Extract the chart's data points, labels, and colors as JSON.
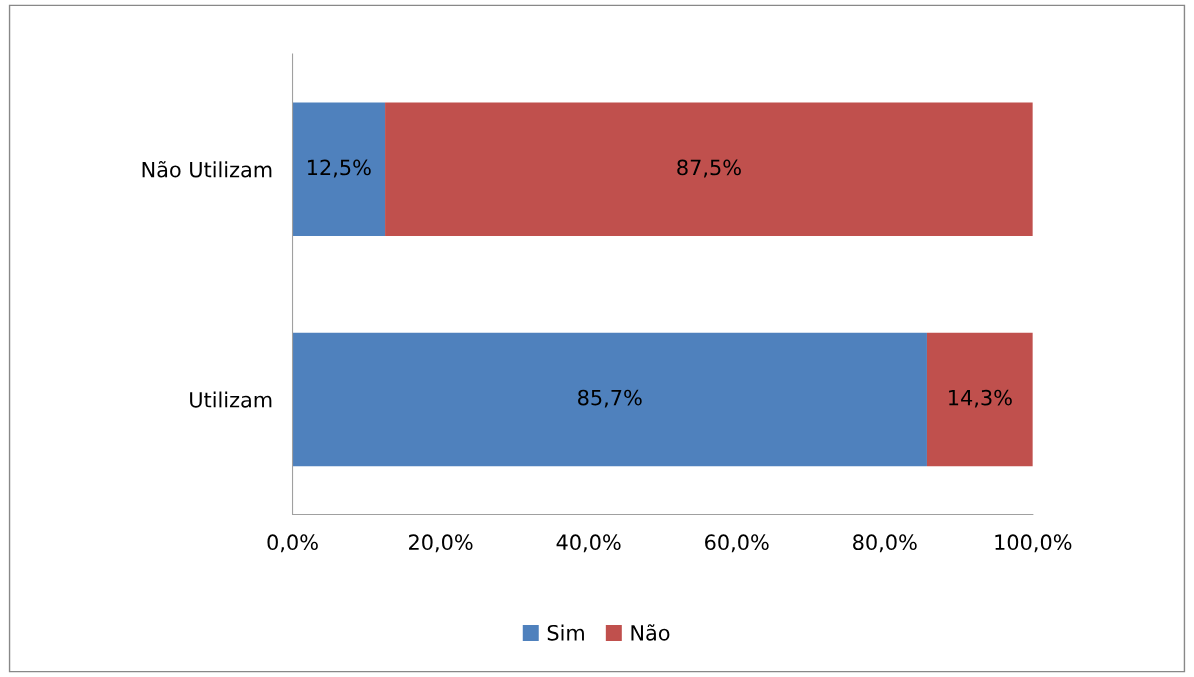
{
  "chart_data": {
    "type": "bar",
    "orientation": "horizontal",
    "stacked": true,
    "categories": [
      "Não Utilizam",
      "Utilizam"
    ],
    "series": [
      {
        "name": "Sim",
        "color": "#4f81bd",
        "values": [
          12.5,
          85.7
        ],
        "value_labels": [
          "12,5%",
          "85,7%"
        ]
      },
      {
        "name": "Não",
        "color": "#c0504d",
        "values": [
          87.5,
          14.3
        ],
        "value_labels": [
          "87,5%",
          "14,3%"
        ]
      }
    ],
    "xlim": [
      0,
      100
    ],
    "xticks": [
      {
        "value": 0,
        "label": "0,0%"
      },
      {
        "value": 20,
        "label": "20,0%"
      },
      {
        "value": 40,
        "label": "40,0%"
      },
      {
        "value": 60,
        "label": "60,0%"
      },
      {
        "value": 80,
        "label": "80,0%"
      },
      {
        "value": 100,
        "label": "100,0%"
      }
    ],
    "grid": false,
    "legend": "bottom"
  }
}
